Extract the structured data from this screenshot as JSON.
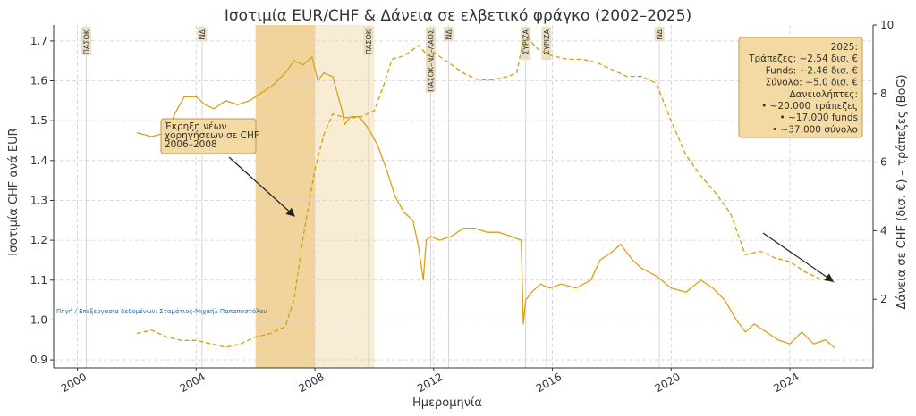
{
  "chart_data": {
    "type": "line",
    "title": "Ισοτιμία EUR/CHF & Δάνεια σε ελβετικό φράγκο (2002–2025)",
    "xlabel": "Ημερομηνία",
    "ylabel": "Ισοτιμία CHF ανά EUR",
    "y2label": "Δάνεια σε CHF (δισ. €) – τράπεζες (BoG)",
    "xlim": [
      1999.2,
      2026.8
    ],
    "ylim": [
      0.88,
      1.74
    ],
    "y2lim": [
      0.0,
      10.0
    ],
    "x_ticks": [
      2000,
      2004,
      2008,
      2012,
      2016,
      2020,
      2024
    ],
    "x_tick_labels": [
      "2000",
      "2004",
      "2008",
      "2012",
      "2016",
      "2020",
      "2024"
    ],
    "y_ticks": [
      "0.9",
      "1.0",
      "1.1",
      "1.2",
      "1.3",
      "1.4",
      "1.5",
      "1.6",
      "1.7"
    ],
    "y2_ticks": [
      "2",
      "4",
      "6",
      "8",
      "10"
    ],
    "grid": true,
    "series": [
      {
        "axis": "left",
        "style": "solid",
        "color": "#d8a11a",
        "x": [
          2002.0,
          2002.5,
          2003.0,
          2003.3,
          2003.6,
          2004.0,
          2004.3,
          2004.6,
          2005.0,
          2005.4,
          2005.8,
          2006.2,
          2006.6,
          2007.0,
          2007.3,
          2007.6,
          2007.9,
          2008.1,
          2008.3,
          2008.6,
          2008.9,
          2009.0,
          2009.2,
          2009.5,
          2009.8,
          2010.1,
          2010.4,
          2010.7,
          2011.0,
          2011.3,
          2011.5,
          2011.65,
          2011.75,
          2011.9,
          2012.2,
          2012.6,
          2013.0,
          2013.4,
          2013.8,
          2014.2,
          2014.6,
          2014.95,
          2015.02,
          2015.1,
          2015.3,
          2015.6,
          2015.9,
          2016.3,
          2016.8,
          2017.3,
          2017.6,
          2018.0,
          2018.3,
          2018.7,
          2019.0,
          2019.5,
          2020.0,
          2020.5,
          2021.0,
          2021.4,
          2021.8,
          2022.2,
          2022.5,
          2022.8,
          2023.2,
          2023.6,
          2024.0,
          2024.4,
          2024.8,
          2025.2,
          2025.5
        ],
        "y": [
          1.47,
          1.46,
          1.47,
          1.52,
          1.56,
          1.56,
          1.54,
          1.53,
          1.55,
          1.54,
          1.55,
          1.57,
          1.59,
          1.62,
          1.65,
          1.64,
          1.66,
          1.6,
          1.62,
          1.61,
          1.53,
          1.49,
          1.51,
          1.51,
          1.48,
          1.44,
          1.38,
          1.31,
          1.27,
          1.25,
          1.18,
          1.1,
          1.2,
          1.21,
          1.2,
          1.21,
          1.23,
          1.23,
          1.22,
          1.22,
          1.21,
          1.2,
          0.99,
          1.05,
          1.07,
          1.09,
          1.08,
          1.09,
          1.08,
          1.1,
          1.15,
          1.17,
          1.19,
          1.15,
          1.13,
          1.11,
          1.08,
          1.07,
          1.1,
          1.08,
          1.05,
          1.0,
          0.97,
          0.99,
          0.97,
          0.95,
          0.94,
          0.97,
          0.94,
          0.95,
          0.93
        ]
      },
      {
        "axis": "right",
        "style": "dashed",
        "color": "#d8a11a",
        "x": [
          2002.0,
          2002.5,
          2003.0,
          2003.5,
          2004.0,
          2004.5,
          2005.0,
          2005.5,
          2006.0,
          2006.5,
          2007.0,
          2007.3,
          2007.6,
          2008.0,
          2008.3,
          2008.6,
          2009.0,
          2009.5,
          2010.0,
          2010.3,
          2010.6,
          2011.0,
          2011.5,
          2011.8,
          2012.0,
          2012.5,
          2013.0,
          2013.5,
          2014.0,
          2014.5,
          2014.8,
          2015.0,
          2015.2,
          2015.5,
          2016.0,
          2016.5,
          2017.0,
          2017.5,
          2018.0,
          2018.5,
          2019.0,
          2019.5,
          2020.0,
          2020.5,
          2021.0,
          2021.5,
          2022.0,
          2022.5,
          2023.0,
          2023.5,
          2024.0,
          2024.5,
          2025.0,
          2025.5
        ],
        "y": [
          1.0,
          1.1,
          0.9,
          0.8,
          0.8,
          0.7,
          0.6,
          0.7,
          0.9,
          1.0,
          1.2,
          2.0,
          3.8,
          5.8,
          6.8,
          7.4,
          7.3,
          7.3,
          7.5,
          8.2,
          9.0,
          9.1,
          9.4,
          9.1,
          9.2,
          8.9,
          8.6,
          8.4,
          8.4,
          8.5,
          8.6,
          9.5,
          9.6,
          9.3,
          9.1,
          9.0,
          9.0,
          8.9,
          8.7,
          8.5,
          8.5,
          8.3,
          7.2,
          6.2,
          5.6,
          5.1,
          4.5,
          3.3,
          3.4,
          3.2,
          3.1,
          2.8,
          2.6,
          2.5
        ]
      }
    ],
    "shaded_periods": [
      {
        "x0": 2006.0,
        "x1": 2008.0,
        "color": "#f0d49c"
      },
      {
        "x0": 2008.0,
        "x1": 2010.0,
        "color": "#f9ecd4"
      }
    ],
    "government_lines": [
      {
        "x": 2000.3,
        "label": "ΠΑΣΟΚ"
      },
      {
        "x": 2004.2,
        "label": "ΝΔ"
      },
      {
        "x": 2009.8,
        "label": "ΠΑΣΟΚ"
      },
      {
        "x": 2011.9,
        "label": "ΠΑΣΟΚ–ΝΔ–ΛΑΟΣ"
      },
      {
        "x": 2012.5,
        "label": "ΝΔ"
      },
      {
        "x": 2015.1,
        "label": "ΣΥΡΙΖΑ"
      },
      {
        "x": 2015.8,
        "label": "ΣΥΡΙΖΑ"
      },
      {
        "x": 2019.6,
        "label": "ΝΔ"
      }
    ],
    "annotations": [
      {
        "lines": [
          "Έκρηξη νέων",
          "χορηγήσεων σε CHF",
          "2006–2008"
        ]
      },
      {
        "lines": [
          "2025:",
          "Τράπεζες: ~2.54 δισ. €",
          "Funds: ~2.46 δισ. €",
          "Σύνολο: ~5.0 δισ. €",
          "Δανειολήπτες:",
          "• ~20.000 τράπεζες",
          "• ~17.000 funds",
          "• ~37.000 σύνολο"
        ]
      }
    ],
    "source": "Πηγή / Επεξεργασία δεδομένων: Σταμάτιος-Μιχαήλ Παπαποστόλου"
  }
}
